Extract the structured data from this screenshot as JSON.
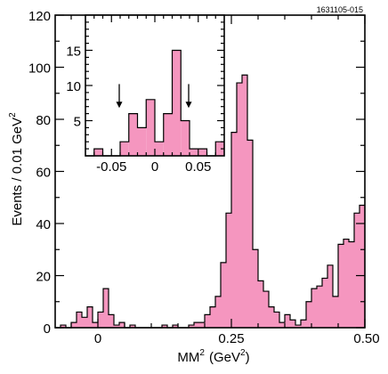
{
  "figure_id": "1631105-015",
  "chart_data": [
    {
      "type": "bar",
      "role": "main",
      "xlabel": "MM",
      "xlabel_sup": "2",
      "xlabel_unit_open": "(GeV",
      "xlabel_unit_sup": "2",
      "xlabel_unit_close": ")",
      "ylabel": "Events / 0.01 GeV",
      "ylabel_sup": "2",
      "xlim": [
        -0.08,
        0.5
      ],
      "ylim": [
        0,
        120
      ],
      "bin_width": 0.01,
      "x_ticks": [
        0,
        0.25,
        0.5
      ],
      "x_tick_labels": [
        "0",
        "0.25",
        "0.50"
      ],
      "y_ticks": [
        0,
        20,
        40,
        60,
        80,
        100,
        120
      ],
      "y_tick_labels": [
        "0",
        "20",
        "40",
        "60",
        "80",
        "100",
        "120"
      ],
      "bin_low_edges": [
        -0.08,
        -0.07,
        -0.06,
        -0.05,
        -0.04,
        -0.03,
        -0.02,
        -0.01,
        0.0,
        0.01,
        0.02,
        0.03,
        0.04,
        0.05,
        0.06,
        0.07,
        0.08,
        0.09,
        0.1,
        0.11,
        0.12,
        0.13,
        0.14,
        0.15,
        0.16,
        0.17,
        0.18,
        0.19,
        0.2,
        0.21,
        0.22,
        0.23,
        0.24,
        0.25,
        0.26,
        0.27,
        0.28,
        0.29,
        0.3,
        0.31,
        0.32,
        0.33,
        0.34,
        0.35,
        0.36,
        0.37,
        0.38,
        0.39,
        0.4,
        0.41,
        0.42,
        0.43,
        0.44,
        0.45,
        0.46,
        0.47,
        0.48,
        0.49
      ],
      "values": [
        0,
        1,
        0,
        2,
        6,
        4,
        8,
        2,
        6,
        15,
        5,
        1,
        2,
        0,
        1,
        0,
        0,
        0,
        0,
        0,
        1,
        0,
        1,
        0,
        0,
        1,
        2,
        2,
        5,
        8,
        12,
        25,
        44,
        75,
        94,
        97,
        72,
        30,
        18,
        14,
        8,
        6,
        2,
        5,
        3,
        1,
        3,
        10,
        15,
        16,
        19,
        24,
        12,
        32,
        34,
        33,
        44,
        47
      ],
      "values_tail": [
        35
      ]
    },
    {
      "type": "bar",
      "role": "inset",
      "xlim": [
        -0.08,
        0.08
      ],
      "ylim": [
        0,
        20
      ],
      "x_ticks": [
        -0.05,
        0,
        0.05
      ],
      "x_tick_labels": [
        "-0.05",
        "0",
        "0.05"
      ],
      "y_ticks": [
        5,
        10,
        15
      ],
      "y_tick_labels": [
        "5",
        "10",
        "15"
      ],
      "bin_low_edges": [
        -0.08,
        -0.07,
        -0.06,
        -0.05,
        -0.04,
        -0.03,
        -0.02,
        -0.01,
        0.0,
        0.01,
        0.02,
        0.03,
        0.04,
        0.05,
        0.06,
        0.07
      ],
      "values": [
        0,
        1,
        0,
        0,
        2,
        6,
        4,
        8,
        2,
        6,
        15,
        5,
        1,
        1,
        0,
        2
      ],
      "arrows_at": [
        -0.04,
        0.04
      ]
    }
  ]
}
